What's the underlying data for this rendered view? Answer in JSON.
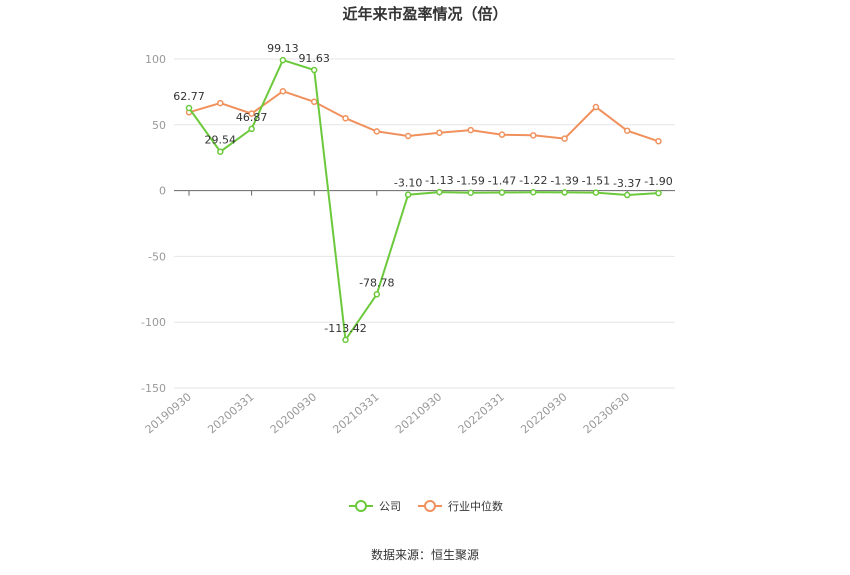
{
  "chart_data": {
    "type": "line",
    "title": "近年来市盈率情况（倍）",
    "x": [
      "20190930",
      "20191231",
      "20200331",
      "20200630",
      "20200930",
      "20201231",
      "20210331",
      "20210630",
      "20210930",
      "20211231",
      "20220331",
      "20220630",
      "20220930",
      "20221231",
      "20230630",
      "20230930"
    ],
    "x_tick_labels": [
      "20190930",
      "20200331",
      "20200930",
      "20210331",
      "20210930",
      "20220331",
      "20220930",
      "20230630"
    ],
    "ylim": [
      -150,
      100
    ],
    "yticks": [
      100,
      50,
      0,
      -50,
      -100,
      -150
    ],
    "grid": true,
    "legend_position": "bottom",
    "series": [
      {
        "name": "公司",
        "color": "#6bc93b",
        "values": [
          62.77,
          29.54,
          46.87,
          99.13,
          91.63,
          -113.42,
          -78.78,
          -3.1,
          -1.13,
          -1.59,
          -1.47,
          -1.22,
          -1.39,
          -1.51,
          -3.37,
          -1.9
        ],
        "labels": [
          "62.77",
          "29.54",
          "46.87",
          "99.13",
          "91.63",
          "-113.42",
          "-78.78",
          "-3.10",
          "-1.13",
          "-1.59",
          "-1.47",
          "-1.22",
          "-1.39",
          "-1.51",
          "-3.37",
          "-1.90"
        ]
      },
      {
        "name": "行业中位数",
        "color": "#f0915d",
        "values": [
          59.5,
          66.5,
          58.5,
          75.5,
          67.5,
          55.0,
          45.0,
          41.5,
          44.0,
          46.0,
          42.5,
          42.0,
          39.5,
          63.5,
          45.5,
          37.5
        ]
      }
    ]
  },
  "source": "数据来源：恒生聚源"
}
